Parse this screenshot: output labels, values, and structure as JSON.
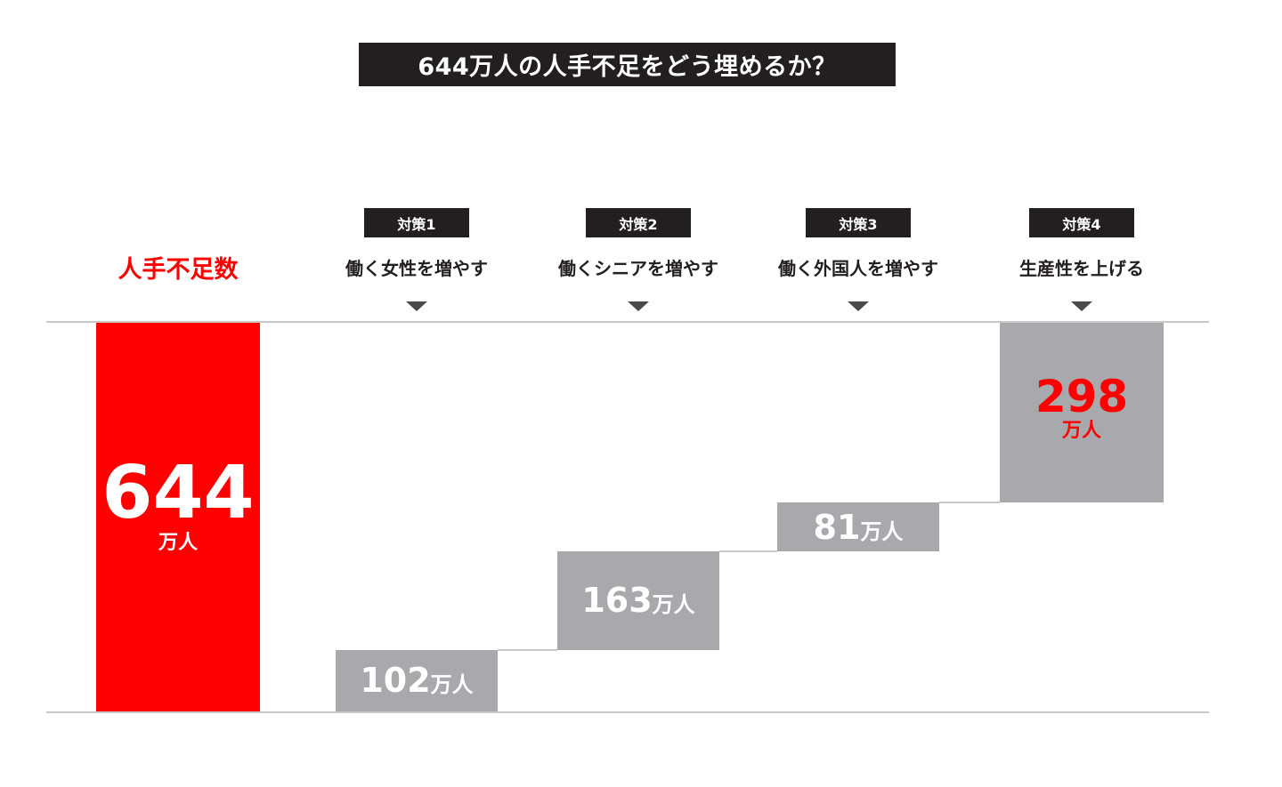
{
  "title": "644万人の人手不足をどう埋めるか？",
  "colors": {
    "shortage": "#ff0000",
    "measure": "#a7a9ac",
    "dark": "#231f20",
    "white": "#ffffff"
  },
  "chart_data": {
    "type": "bar",
    "subtype": "waterfall",
    "unit": "万人",
    "categories": [
      "人手不足数",
      "働く女性を増やす",
      "働くシニアを増やす",
      "働く外国人を増やす",
      "生産性を上げる"
    ],
    "badges": [
      "",
      "対策1",
      "対策2",
      "対策3",
      "対策4"
    ],
    "values": [
      644,
      102,
      163,
      81,
      298
    ],
    "value_labels": [
      "644",
      "102",
      "163",
      "81",
      "298"
    ],
    "ylim": [
      0,
      644
    ]
  }
}
